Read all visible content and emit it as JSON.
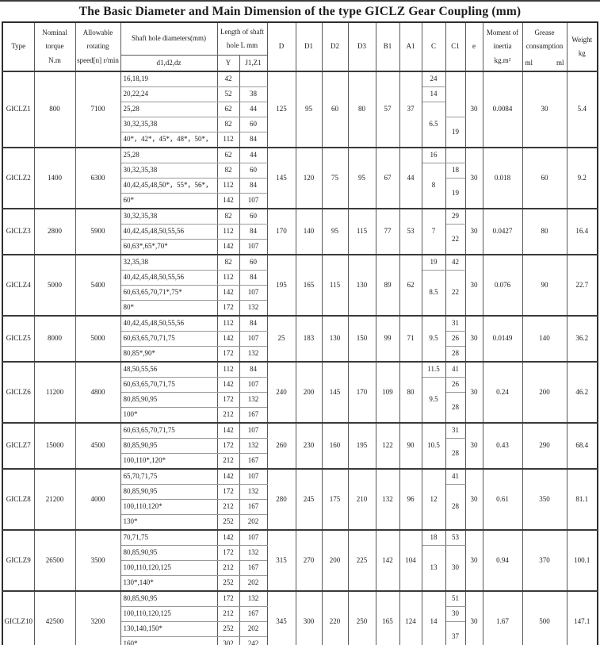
{
  "title": "The Basic Diameter and Main Dimension of the type GICLZ Gear Coupling (mm)",
  "header": {
    "type": "Type",
    "torque": "Nominal\ntorque\nN.m",
    "speed": "Allowable\nrotating\nspeed[n] r/min",
    "shaft": "Shaft hole diameters(mm)",
    "shaft_sub": "d1,d2,dz",
    "length": "Length of shaft\nhole L mm",
    "y": "Y",
    "jz": "J1,Z1",
    "dims": [
      "D",
      "D1",
      "D2",
      "D3",
      "B1",
      "A1",
      "C",
      "C1",
      "e"
    ],
    "inertia": "Moment of\ninertia\nkg.m²",
    "grease": "Grease\nconsumption",
    "ml_left": "ml",
    "ml_right": "ml",
    "weight": "Weight\nkg"
  },
  "groups": [
    {
      "type": "GICLZ1",
      "torque": "800",
      "speed": "7100",
      "rows": [
        [
          "16,18,19",
          "42",
          ""
        ],
        [
          "20,22,24",
          "52",
          "38"
        ],
        [
          "25,28",
          "62",
          "44"
        ],
        [
          "30,32,35,38",
          "82",
          "60"
        ],
        [
          "40*，42*，45*，48*，50*，",
          "112",
          "84"
        ]
      ],
      "D": "125",
      "D1": "95",
      "D2": "60",
      "D3": "80",
      "B1": "57",
      "A1": "37",
      "c": [
        [
          "24",
          1
        ],
        [
          "14",
          1
        ],
        [
          "6.5",
          3
        ]
      ],
      "c1": [
        [
          "",
          3
        ],
        [
          "19",
          2
        ]
      ],
      "e": "30",
      "inertia": "0.0084",
      "grease": "30",
      "weight": "5.4"
    },
    {
      "type": "GICLZ2",
      "torque": "1400",
      "speed": "6300",
      "rows": [
        [
          "25,28",
          "62",
          "44"
        ],
        [
          "30,32,35,38",
          "82",
          "60"
        ],
        [
          "40,42,45,48,50*，55*，56*，",
          "112",
          "84"
        ],
        [
          "60*",
          "142",
          "107"
        ]
      ],
      "D": "145",
      "D1": "120",
      "D2": "75",
      "D3": "95",
      "B1": "67",
      "A1": "44",
      "c": [
        [
          "16",
          1
        ],
        [
          "8",
          3
        ]
      ],
      "c1": [
        [
          "",
          1
        ],
        [
          "18",
          1
        ],
        [
          "19",
          2
        ]
      ],
      "e": "30",
      "inertia": "0.018",
      "grease": "60",
      "weight": "9.2"
    },
    {
      "type": "GICLZ3",
      "torque": "2800",
      "speed": "5900",
      "rows": [
        [
          "30,32,35,38",
          "82",
          "60"
        ],
        [
          "40,42,45,48,50,55,56",
          "112",
          "84"
        ],
        [
          "60,63*,65*,70*",
          "142",
          "107"
        ]
      ],
      "D": "170",
      "D1": "140",
      "D2": "95",
      "D3": "115",
      "B1": "77",
      "A1": "53",
      "c": [
        [
          "7",
          3
        ]
      ],
      "c1": [
        [
          "29",
          1
        ],
        [
          "22",
          2
        ]
      ],
      "e": "30",
      "inertia": "0.0427",
      "grease": "80",
      "weight": "16.4"
    },
    {
      "type": "GICLZ4",
      "torque": "5000",
      "speed": "5400",
      "rows": [
        [
          "32,35,38",
          "82",
          "60"
        ],
        [
          "40,42,45,48,50,55,56",
          "112",
          "84"
        ],
        [
          "60,63,65,70,71*,75*",
          "142",
          "107"
        ],
        [
          "80*",
          "172",
          "132"
        ]
      ],
      "D": "195",
      "D1": "165",
      "D2": "115",
      "D3": "130",
      "B1": "89",
      "A1": "62",
      "c": [
        [
          "19",
          1
        ],
        [
          "8.5",
          3
        ]
      ],
      "c1": [
        [
          "42",
          1
        ],
        [
          "22",
          3
        ]
      ],
      "e": "30",
      "inertia": "0.076",
      "grease": "90",
      "weight": "22.7"
    },
    {
      "type": "GICLZ5",
      "torque": "8000",
      "speed": "5000",
      "rows": [
        [
          "40,42,45,48,50,55,56",
          "112",
          "84"
        ],
        [
          "60,63,65,70,71,75",
          "142",
          "107"
        ],
        [
          "80,85*,90*",
          "172",
          "132"
        ]
      ],
      "D": "25",
      "D1": "183",
      "D2": "130",
      "D3": "150",
      "B1": "99",
      "A1": "71",
      "c": [
        [
          "9.5",
          3
        ]
      ],
      "c1": [
        [
          "31",
          1
        ],
        [
          "26",
          1
        ],
        [
          "28",
          1
        ]
      ],
      "e": "30",
      "inertia": "0.0149",
      "grease": "140",
      "weight": "36.2"
    },
    {
      "type": "GICLZ6",
      "torque": "11200",
      "speed": "4800",
      "rows": [
        [
          "48,50,55,56",
          "112",
          "84"
        ],
        [
          "60,63,65,70,71,75",
          "142",
          "107"
        ],
        [
          "80,85,90,95",
          "172",
          "132"
        ],
        [
          "100*",
          "212",
          "167"
        ]
      ],
      "D": "240",
      "D1": "200",
      "D2": "145",
      "D3": "170",
      "B1": "109",
      "A1": "80",
      "c": [
        [
          "11.5",
          1
        ],
        [
          "9.5",
          3
        ]
      ],
      "c1": [
        [
          "41",
          1
        ],
        [
          "26",
          1
        ],
        [
          "28",
          2
        ]
      ],
      "e": "30",
      "inertia": "0.24",
      "grease": "200",
      "weight": "46.2"
    },
    {
      "type": "GICLZ7",
      "torque": "15000",
      "speed": "4500",
      "rows": [
        [
          "60,63,65,70,71,75",
          "142",
          "107"
        ],
        [
          "80,85,90,95",
          "172",
          "132"
        ],
        [
          "100,110*,120*",
          "212",
          "167"
        ]
      ],
      "D": "260",
      "D1": "230",
      "D2": "160",
      "D3": "195",
      "B1": "122",
      "A1": "90",
      "c": [
        [
          "10.5",
          3
        ]
      ],
      "c1": [
        [
          "31",
          1
        ],
        [
          "28",
          2
        ]
      ],
      "e": "30",
      "inertia": "0.43",
      "grease": "290",
      "weight": "68.4"
    },
    {
      "type": "GICLZ8",
      "torque": "21200",
      "speed": "4000",
      "rows": [
        [
          "65,70,71,75",
          "142",
          "107"
        ],
        [
          "80,85,90,95",
          "172",
          "132"
        ],
        [
          "100,110,120*",
          "212",
          "167"
        ],
        [
          "130*",
          "252",
          "202"
        ]
      ],
      "D": "280",
      "D1": "245",
      "D2": "175",
      "D3": "210",
      "B1": "132",
      "A1": "96",
      "c": [
        [
          "12",
          4
        ]
      ],
      "c1": [
        [
          "41",
          1
        ],
        [
          "28",
          3
        ]
      ],
      "e": "30",
      "inertia": "0.61",
      "grease": "350",
      "weight": "81.1"
    },
    {
      "type": "GICLZ9",
      "torque": "26500",
      "speed": "3500",
      "rows": [
        [
          "70,71,75",
          "142",
          "107"
        ],
        [
          "80,85,90,95",
          "172",
          "132"
        ],
        [
          "100,110,120,125",
          "212",
          "167"
        ],
        [
          "130*,140*",
          "252",
          "202"
        ]
      ],
      "D": "315",
      "D1": "270",
      "D2": "200",
      "D3": "225",
      "B1": "142",
      "A1": "104",
      "c": [
        [
          "18",
          1
        ],
        [
          "13",
          3
        ]
      ],
      "c1": [
        [
          "53",
          1
        ],
        [
          "30",
          3
        ]
      ],
      "e": "30",
      "inertia": "0.94",
      "grease": "370",
      "weight": "100.1"
    },
    {
      "type": "GICLZ10",
      "torque": "42500",
      "speed": "3200",
      "rows": [
        [
          "80,85,90,95",
          "172",
          "132"
        ],
        [
          "100,110,120,125",
          "212",
          "167"
        ],
        [
          "130,140,150*",
          "252",
          "202"
        ],
        [
          "160*",
          "302",
          "242"
        ]
      ],
      "D": "345",
      "D1": "300",
      "D2": "220",
      "D3": "250",
      "B1": "165",
      "A1": "124",
      "c": [
        [
          "14",
          4
        ]
      ],
      "c1": [
        [
          "51",
          1
        ],
        [
          "30",
          1
        ],
        [
          "37",
          2
        ]
      ],
      "e": "30",
      "inertia": "1.67",
      "grease": "500",
      "weight": "147.1"
    }
  ]
}
